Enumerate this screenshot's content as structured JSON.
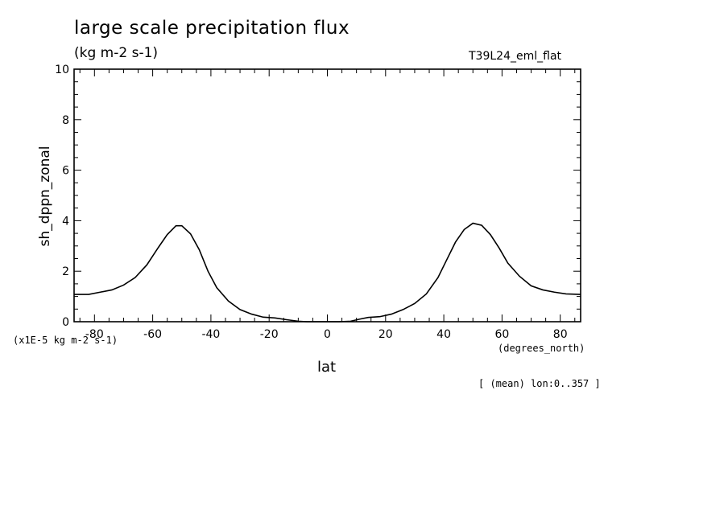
{
  "chart_data": {
    "type": "line",
    "title": "large scale precipitation flux",
    "units_label": "(kg m-2 s-1)",
    "run_label": "T39L24_eml_flat",
    "ylabel": "sh_dppn_zonal",
    "xlabel": "lat",
    "x_units_label": "(degrees_north)",
    "scale_label": "(x1E-5 kg m-2 s-1)",
    "mean_label": "[ (mean) lon:0..357 ]",
    "xlim": [
      -87,
      87
    ],
    "ylim": [
      0,
      10
    ],
    "xticks": [
      -80,
      -60,
      -40,
      -20,
      0,
      20,
      40,
      60,
      80
    ],
    "xtick_labels": [
      "-80",
      "-60",
      "-40",
      "-20",
      "0",
      "20",
      "40",
      "60",
      "80"
    ],
    "yticks": [
      0,
      2,
      4,
      6,
      8,
      10
    ],
    "ytick_labels": [
      "0",
      "2",
      "4",
      "6",
      "8",
      "10"
    ],
    "series": [
      {
        "name": "sh_dppn_zonal",
        "x": [
          -87,
          -82,
          -78,
          -74,
          -70,
          -66,
          -62,
          -58,
          -55,
          -52,
          -50,
          -47,
          -44,
          -41,
          -38,
          -34,
          -30,
          -26,
          -22,
          -18,
          -14,
          -10,
          -7,
          -4,
          0,
          4,
          8,
          11,
          14,
          18,
          22,
          26,
          30,
          34,
          38,
          41,
          44,
          47,
          50,
          53,
          56,
          59,
          62,
          66,
          70,
          74,
          78,
          82,
          87
        ],
        "values": [
          1.08,
          1.08,
          1.17,
          1.26,
          1.45,
          1.75,
          2.25,
          2.95,
          3.45,
          3.8,
          3.8,
          3.48,
          2.85,
          2.0,
          1.35,
          0.82,
          0.48,
          0.3,
          0.18,
          0.15,
          0.08,
          0.02,
          0.0,
          0.0,
          0.0,
          0.0,
          0.02,
          0.1,
          0.17,
          0.2,
          0.3,
          0.48,
          0.72,
          1.1,
          1.75,
          2.45,
          3.15,
          3.65,
          3.9,
          3.82,
          3.45,
          2.92,
          2.32,
          1.8,
          1.42,
          1.26,
          1.17,
          1.1,
          1.08
        ]
      }
    ]
  }
}
